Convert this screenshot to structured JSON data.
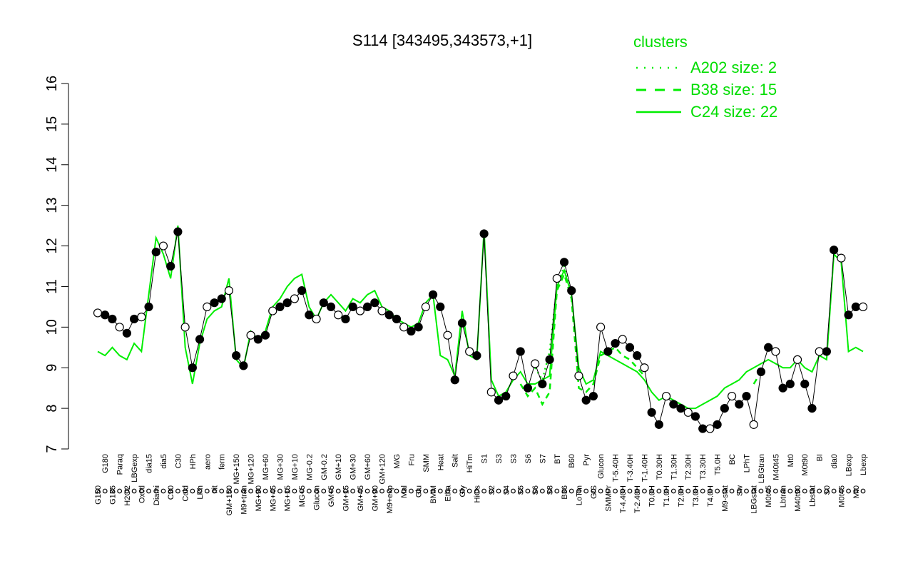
{
  "colors": {
    "accent": "#00ee00",
    "points": "#000000",
    "background": "#ffffff"
  },
  "chart_data": {
    "type": "line",
    "title": "S114 [343495,343573,+1]",
    "xlabel": "",
    "ylabel": "",
    "ylim": [
      7,
      16
    ],
    "yticks": [
      7,
      8,
      9,
      10,
      11,
      12,
      13,
      14,
      15,
      16
    ],
    "grid": false,
    "legend": {
      "placement": "top-right",
      "title": "clusters",
      "entries": [
        {
          "label": "A202 size: 2",
          "style": "dotted"
        },
        {
          "label": "B38 size: 15",
          "style": "dashed"
        },
        {
          "label": "C24 size: 22",
          "style": "solid"
        }
      ]
    },
    "x_tick_labels": [
      "G150",
      "G180",
      "G135",
      "Paraq",
      "H2O2",
      "LBGexp",
      "Oxctl",
      "dia15",
      "Diami",
      "dia5",
      "C90",
      "C30",
      "Cold",
      "HPh",
      "LPh",
      "aero",
      "nit",
      "ferm",
      "GM+150",
      "MG+150",
      "M9+tran",
      "MG+120",
      "MG+90",
      "MG+60",
      "MG+45",
      "MG+30",
      "MG+15",
      "MG+10",
      "MG+5",
      "MG-0.2",
      "Glucon",
      "GM-0.2",
      "GM+5",
      "GM+10",
      "GM+15",
      "GM+30",
      "GM+45",
      "GM+60",
      "GM+90",
      "GM+120",
      "M9+exp",
      "M/G",
      "Mal",
      "Fru",
      "Glu",
      "SMM",
      "BMM",
      "Heat",
      "Etha",
      "Salt",
      "Gly",
      "HiTm",
      "HiOs",
      "S1",
      "S2",
      "S3",
      "S4",
      "S3",
      "S5",
      "S6",
      "S6",
      "S7",
      "S8",
      "BT",
      "B36",
      "B60",
      "LoTm",
      "Pyr",
      "G/S",
      "Glucon",
      "SMMPr",
      "T-5.40H",
      "T-4.40H",
      "T-3.40H",
      "T-2.40H",
      "T-1.40H",
      "T0.0H",
      "T0.30H",
      "T1.0H",
      "T1.30H",
      "T2.0H",
      "T2.30H",
      "T3.0H",
      "T3.30H",
      "T4.0H",
      "T5.0H",
      "M9-stat",
      "BC",
      "Sw",
      "LPhT",
      "LBGstat",
      "LBGtran",
      "M0t45",
      "M40t45",
      "Lbtran",
      "Mt0",
      "M40t90",
      "M0t90",
      "Lbstat",
      "BI",
      "S0",
      "dia0",
      "M0t45",
      "LBexp",
      "Mt0",
      "Lbexp"
    ],
    "series": [
      {
        "style": "points",
        "values": [
          10.35,
          10.3,
          10.2,
          10.0,
          9.85,
          10.2,
          10.25,
          10.5,
          11.85,
          12.0,
          11.5,
          12.35,
          10.0,
          9.0,
          9.7,
          10.5,
          10.6,
          10.7,
          10.9,
          9.3,
          9.05,
          9.8,
          9.7,
          9.8,
          10.4,
          10.5,
          10.6,
          10.7,
          10.9,
          10.3,
          10.2,
          10.6,
          10.5,
          10.3,
          10.2,
          10.5,
          10.4,
          10.5,
          10.6,
          10.4,
          10.3,
          10.2,
          10.0,
          9.9,
          10.0,
          10.5,
          10.8,
          10.5,
          9.8,
          8.7,
          10.1,
          9.4,
          9.3,
          12.3,
          8.4,
          8.2,
          8.3,
          8.8,
          9.4,
          8.5,
          9.1,
          8.6,
          9.2,
          11.2,
          11.6,
          10.9,
          8.8,
          8.2,
          8.3,
          10.0,
          9.4,
          9.6,
          9.7,
          9.5,
          9.3,
          9.0,
          7.9,
          7.6,
          8.3,
          8.1,
          8.0,
          7.9,
          7.8,
          7.5,
          7.5,
          7.6,
          8.0,
          8.3,
          8.1,
          8.3,
          7.6,
          8.9,
          9.5,
          9.4,
          8.5,
          8.6,
          9.2,
          8.6,
          8.0,
          9.4,
          9.4,
          11.9,
          11.7,
          10.3,
          10.5,
          10.5
        ]
      },
      {
        "name": "C24",
        "style": "solid",
        "values": [
          9.4,
          9.3,
          9.5,
          9.3,
          9.2,
          9.6,
          9.4,
          10.8,
          12.2,
          11.8,
          11.2,
          12.5,
          9.5,
          8.6,
          9.6,
          10.2,
          10.4,
          10.5,
          11.2,
          9.2,
          9.0,
          9.9,
          9.7,
          9.9,
          10.5,
          10.7,
          11.0,
          11.2,
          11.3,
          10.5,
          10.2,
          10.6,
          10.8,
          10.6,
          10.4,
          10.7,
          10.6,
          10.8,
          10.9,
          10.5,
          10.4,
          10.2,
          10.1,
          10.0,
          10.1,
          10.6,
          10.8,
          9.3,
          9.2,
          8.8,
          10.4,
          9.3,
          9.2,
          12.4,
          8.7,
          8.3,
          8.4,
          8.7,
          8.9,
          8.6,
          8.6,
          8.7,
          8.8,
          11.0,
          11.4,
          10.8,
          9.0,
          8.6,
          8.7,
          9.4,
          9.3,
          9.2,
          9.1,
          9.0,
          8.9,
          8.7,
          8.4,
          8.2,
          8.3,
          8.2,
          8.1,
          8.0,
          8.0,
          8.1,
          8.2,
          8.3,
          8.5,
          8.6,
          8.7,
          8.9,
          9.0,
          9.1,
          9.2,
          9.1,
          9.0,
          9.0,
          9.2,
          9.0,
          8.9,
          9.3,
          9.2,
          11.8,
          11.6,
          9.4,
          9.5,
          9.4
        ]
      },
      {
        "name": "B38",
        "style": "dashed",
        "values": [
          null,
          null,
          null,
          null,
          null,
          null,
          null,
          null,
          null,
          null,
          null,
          null,
          null,
          null,
          null,
          null,
          null,
          null,
          null,
          null,
          null,
          null,
          null,
          null,
          null,
          null,
          null,
          null,
          null,
          null,
          null,
          null,
          null,
          null,
          null,
          null,
          null,
          null,
          null,
          null,
          null,
          null,
          null,
          null,
          null,
          null,
          null,
          null,
          null,
          null,
          null,
          null,
          null,
          null,
          null,
          null,
          null,
          null,
          8.6,
          8.3,
          8.5,
          8.1,
          8.4,
          10.9,
          11.3,
          10.7,
          8.5,
          8.4,
          8.6,
          9.3,
          9.4,
          9.5,
          9.3,
          9.2,
          9.0,
          8.8,
          null,
          null,
          null,
          null,
          null,
          null,
          null,
          null,
          null,
          null,
          null,
          null,
          null,
          null,
          8.6,
          8.9,
          null,
          null,
          null,
          null,
          null,
          null,
          null,
          null,
          null,
          null,
          null,
          null,
          null,
          null
        ]
      },
      {
        "name": "A202",
        "style": "dotted",
        "values": [
          null,
          null,
          null,
          null,
          null,
          null,
          null,
          null,
          null,
          null,
          null,
          null,
          null,
          null,
          null,
          null,
          null,
          null,
          null,
          null,
          null,
          null,
          null,
          null,
          null,
          null,
          null,
          null,
          null,
          null,
          null,
          null,
          null,
          null,
          null,
          null,
          null,
          null,
          null,
          null,
          null,
          null,
          null,
          null,
          null,
          null,
          null,
          null,
          null,
          null,
          null,
          null,
          null,
          null,
          null,
          null,
          null,
          null,
          null,
          null,
          9.0,
          8.7,
          9.4,
          11.0,
          11.5,
          10.8,
          null,
          null,
          null,
          null,
          null,
          null,
          null,
          null,
          null,
          null,
          null,
          null,
          null,
          null,
          null,
          null,
          null,
          null,
          null,
          null,
          null,
          null,
          null,
          null,
          null,
          null,
          null,
          null,
          null,
          null,
          null,
          null,
          null,
          null,
          null,
          null,
          null,
          null,
          null,
          null
        ]
      }
    ]
  }
}
